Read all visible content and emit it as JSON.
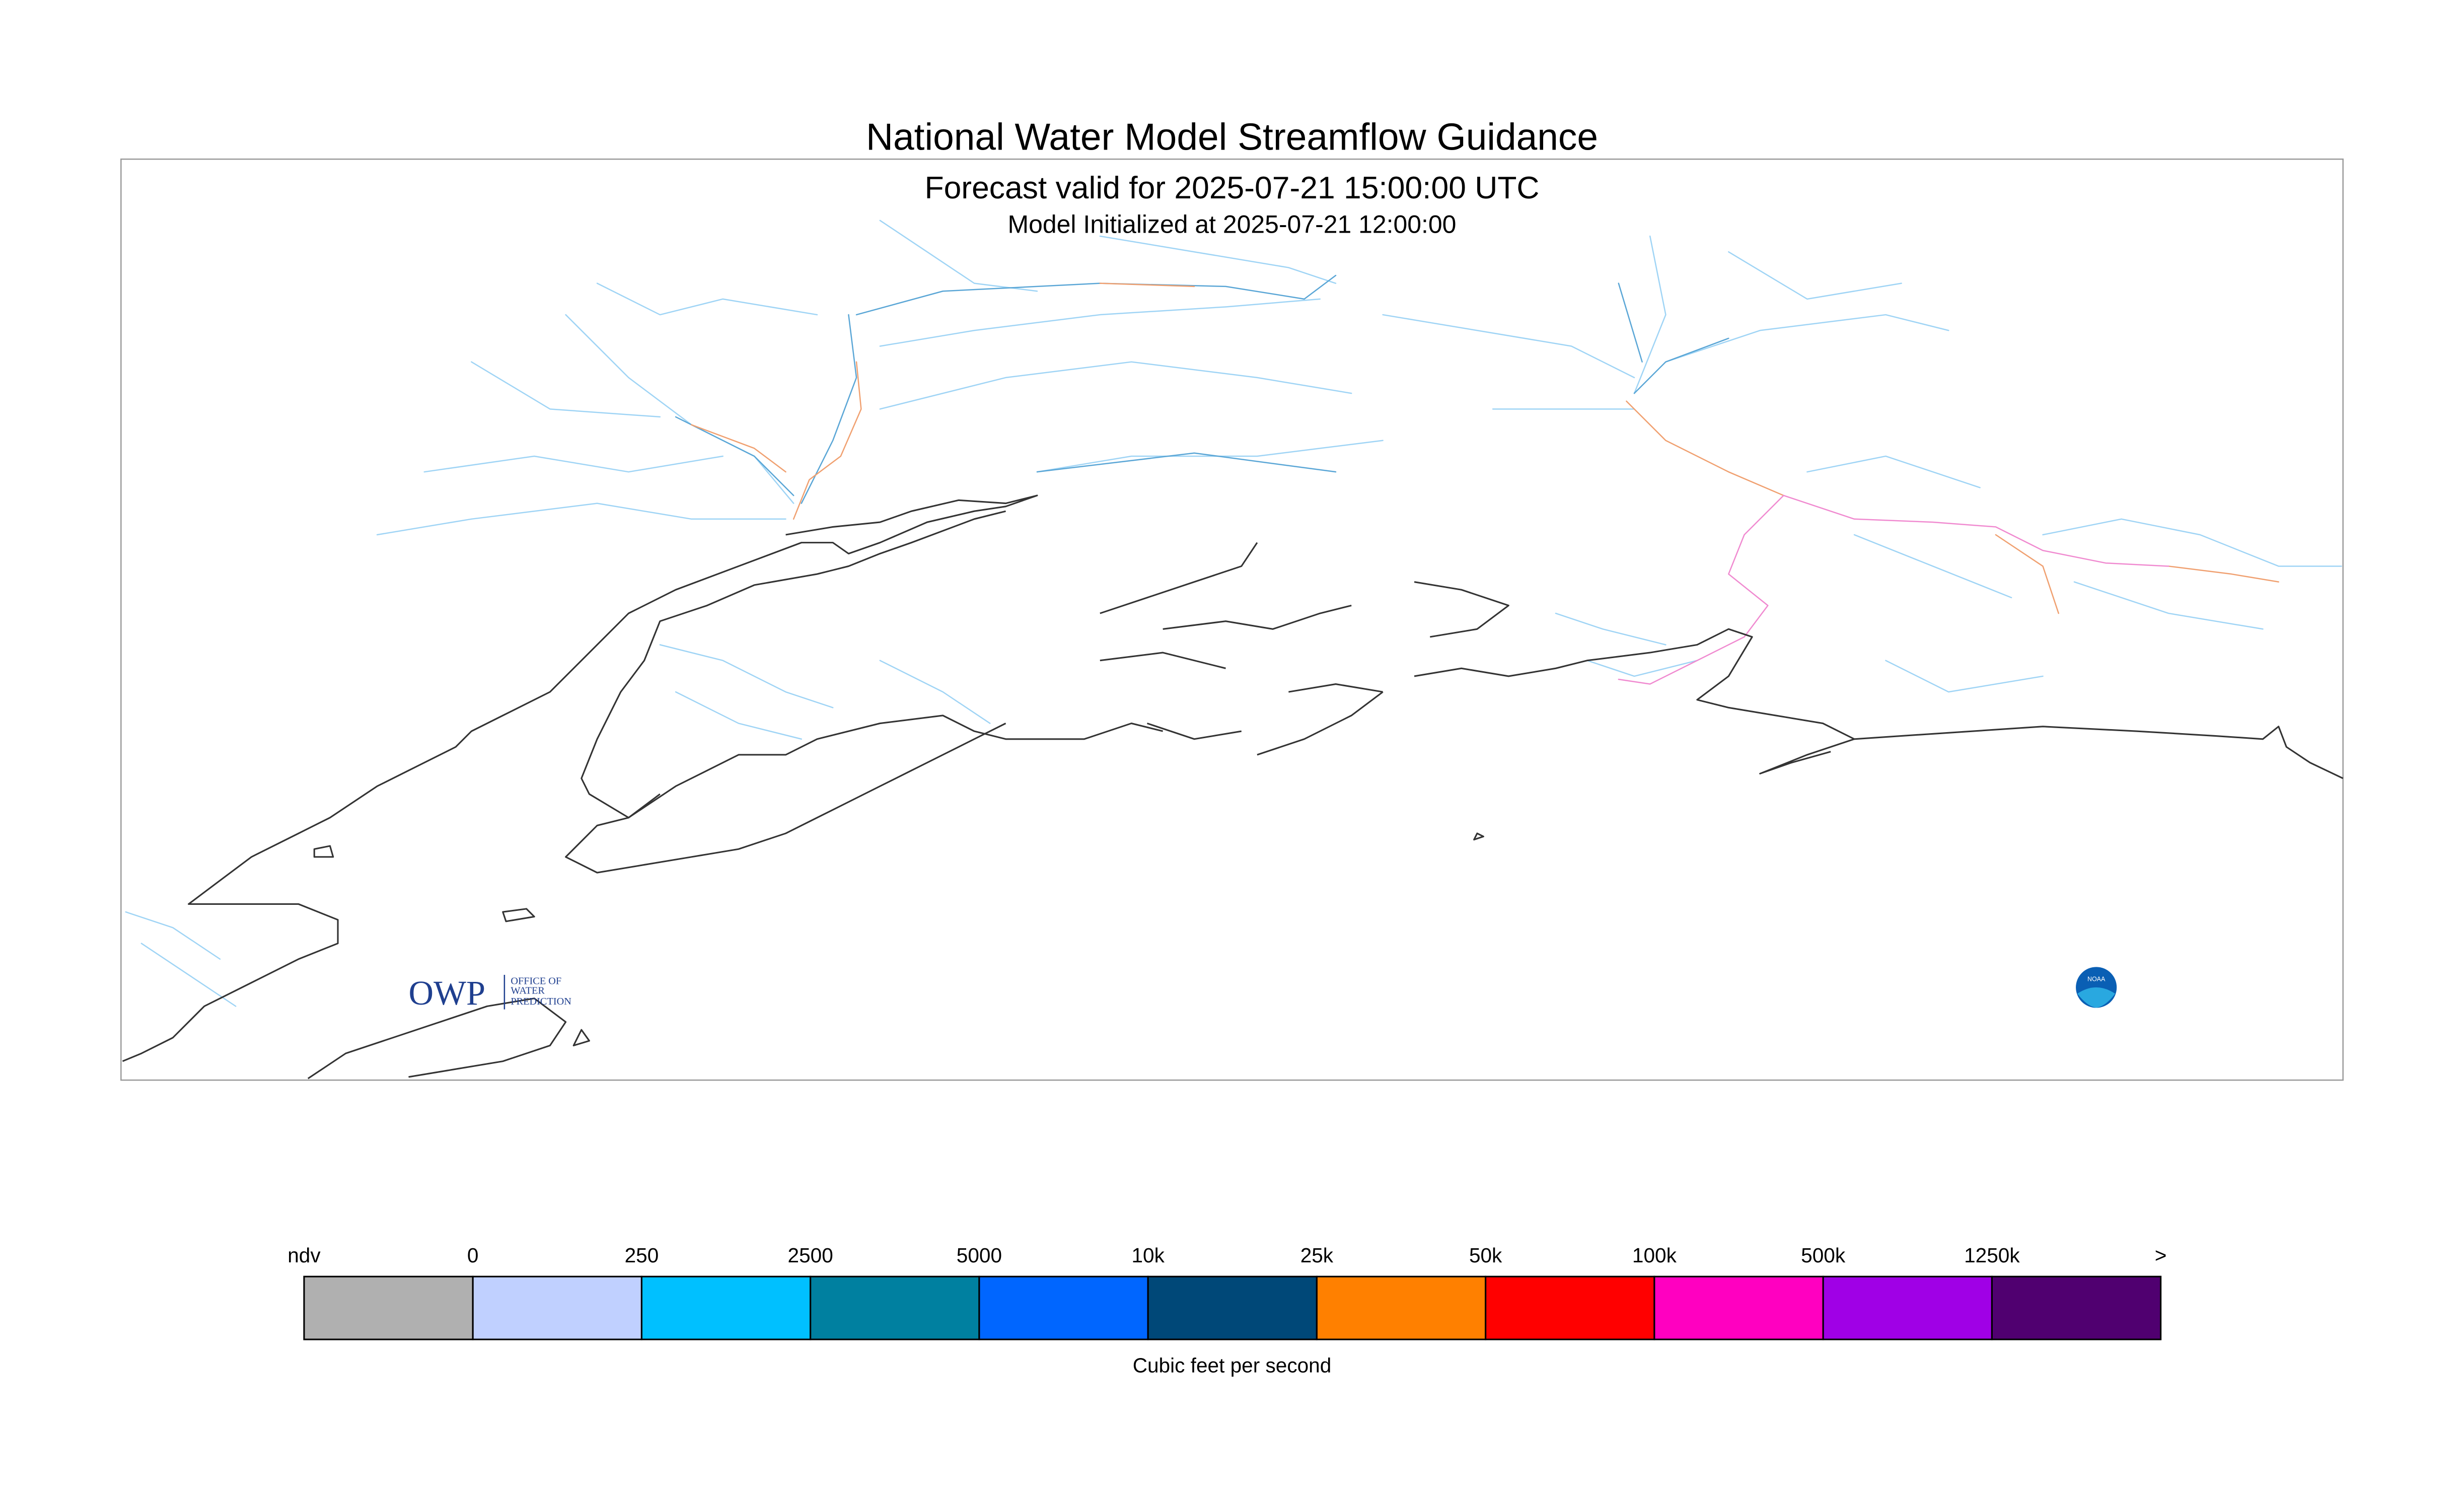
{
  "header": {
    "title": "National Water Model Streamflow Guidance",
    "subtitle": "Forecast valid for 2025-07-21 15:00:00 UTC",
    "initialized": "Model Initialized at 2025-07-21 12:00:00"
  },
  "logo": {
    "short": "OWP",
    "lines": [
      "OFFICE OF",
      "WATER",
      "PREDICTION"
    ],
    "noaa": "NOAA"
  },
  "legend": {
    "labels": [
      "ndv",
      "0",
      "250",
      "2500",
      "5000",
      "10k",
      "25k",
      "50k",
      "100k",
      "500k",
      "1250k",
      ">"
    ],
    "colors": [
      "#b0b0b0",
      "#c0d0ff",
      "#00c0ff",
      "#0080a0",
      "#0066ff",
      "#004878",
      "#ff8000",
      "#ff0000",
      "#ff00c0",
      "#a000e6",
      "#500070"
    ],
    "unit": "Cubic feet per second"
  }
}
